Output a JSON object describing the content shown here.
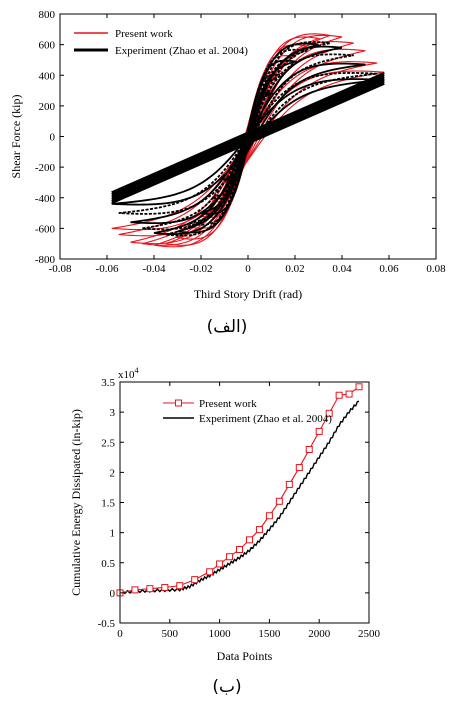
{
  "chart_data": [
    {
      "type": "line",
      "xlabel": "Third Story Drift (rad)",
      "ylabel": "Shear Force (kip)",
      "xlim": [
        -0.08,
        0.08
      ],
      "ylim": [
        -800,
        800
      ],
      "xticks": [
        "-0.08",
        "-0.06",
        "-0.04",
        "-0.02",
        "0",
        "0.02",
        "0.04",
        "0.06",
        "0.08"
      ],
      "yticks": [
        "800",
        "600",
        "400",
        "200",
        "0",
        "-200",
        "-400",
        "-600",
        "-800"
      ],
      "caption": "(الف)",
      "series": [
        {
          "name": "Present work",
          "color": "#e8141c",
          "cycles": [
            {
              "amp": 0.01,
              "peak_pos": 300,
              "peak_neg": -300
            },
            {
              "amp": 0.015,
              "peak_pos": 420,
              "peak_neg": -420
            },
            {
              "amp": 0.02,
              "peak_pos": 520,
              "peak_neg": -520
            },
            {
              "amp": 0.025,
              "peak_pos": 590,
              "peak_neg": -590
            },
            {
              "amp": 0.03,
              "peak_pos": 640,
              "peak_neg": -660
            },
            {
              "amp": 0.035,
              "peak_pos": 660,
              "peak_neg": -700
            },
            {
              "amp": 0.04,
              "peak_pos": 650,
              "peak_neg": -710
            },
            {
              "amp": 0.045,
              "peak_pos": 610,
              "peak_neg": -700
            },
            {
              "amp": 0.05,
              "peak_pos": 560,
              "peak_neg": -690
            },
            {
              "amp": 0.055,
              "peak_pos": 480,
              "peak_neg": -640
            },
            {
              "amp": 0.058,
              "peak_pos": 420,
              "peak_neg": -600
            }
          ]
        },
        {
          "name": "Experiment (Zhao et al. 2004)",
          "color": "#000000",
          "cycles": [
            {
              "amp": 0.01,
              "peak_pos": 280,
              "peak_neg": -280
            },
            {
              "amp": 0.015,
              "peak_pos": 400,
              "peak_neg": -400
            },
            {
              "amp": 0.02,
              "peak_pos": 490,
              "peak_neg": -500
            },
            {
              "amp": 0.025,
              "peak_pos": 560,
              "peak_neg": -570
            },
            {
              "amp": 0.03,
              "peak_pos": 600,
              "peak_neg": -620
            },
            {
              "amp": 0.035,
              "peak_pos": 610,
              "peak_neg": -640
            },
            {
              "amp": 0.04,
              "peak_pos": 580,
              "peak_neg": -630
            },
            {
              "amp": 0.045,
              "peak_pos": 530,
              "peak_neg": -600
            },
            {
              "amp": 0.05,
              "peak_pos": 470,
              "peak_neg": -560
            },
            {
              "amp": 0.055,
              "peak_pos": 410,
              "peak_neg": -500
            },
            {
              "amp": 0.058,
              "peak_pos": 370,
              "peak_neg": -440
            }
          ]
        }
      ]
    },
    {
      "type": "line",
      "xlabel": "Data Points",
      "ylabel": "Cumulative Energy Dissipated (in-kip)",
      "exponent_label": "x10",
      "exponent_power": "4",
      "xlim": [
        0,
        2500
      ],
      "ylim": [
        -0.5,
        3.5
      ],
      "xticks": [
        "0",
        "500",
        "1000",
        "1500",
        "2000",
        "2500"
      ],
      "yticks": [
        "3.5",
        "3",
        "2.5",
        "2",
        "1.5",
        "1",
        "0.5",
        "0",
        "-0.5"
      ],
      "caption": "(ب)",
      "series": [
        {
          "name": "Present work",
          "color": "#e8141c",
          "marker": "square",
          "x": [
            0,
            150,
            300,
            450,
            600,
            750,
            900,
            1000,
            1100,
            1200,
            1300,
            1400,
            1500,
            1600,
            1700,
            1800,
            1900,
            2000,
            2100,
            2200,
            2300,
            2400
          ],
          "y": [
            0.0,
            0.05,
            0.07,
            0.09,
            0.12,
            0.22,
            0.35,
            0.48,
            0.6,
            0.72,
            0.88,
            1.05,
            1.28,
            1.52,
            1.8,
            2.08,
            2.38,
            2.68,
            2.98,
            3.28,
            3.3,
            3.42
          ]
        },
        {
          "name": "Experiment (Zhao et al. 2004)",
          "color": "#000000",
          "x": [
            0,
            150,
            300,
            450,
            600,
            700,
            800,
            900,
            1000,
            1100,
            1200,
            1300,
            1400,
            1500,
            1600,
            1700,
            1800,
            1900,
            2000,
            2100,
            2200,
            2300,
            2400
          ],
          "y": [
            0.0,
            0.02,
            0.03,
            0.04,
            0.05,
            0.1,
            0.2,
            0.28,
            0.38,
            0.48,
            0.58,
            0.7,
            0.86,
            1.05,
            1.25,
            1.5,
            1.75,
            2.0,
            2.25,
            2.5,
            2.78,
            3.0,
            3.18
          ]
        }
      ]
    }
  ]
}
